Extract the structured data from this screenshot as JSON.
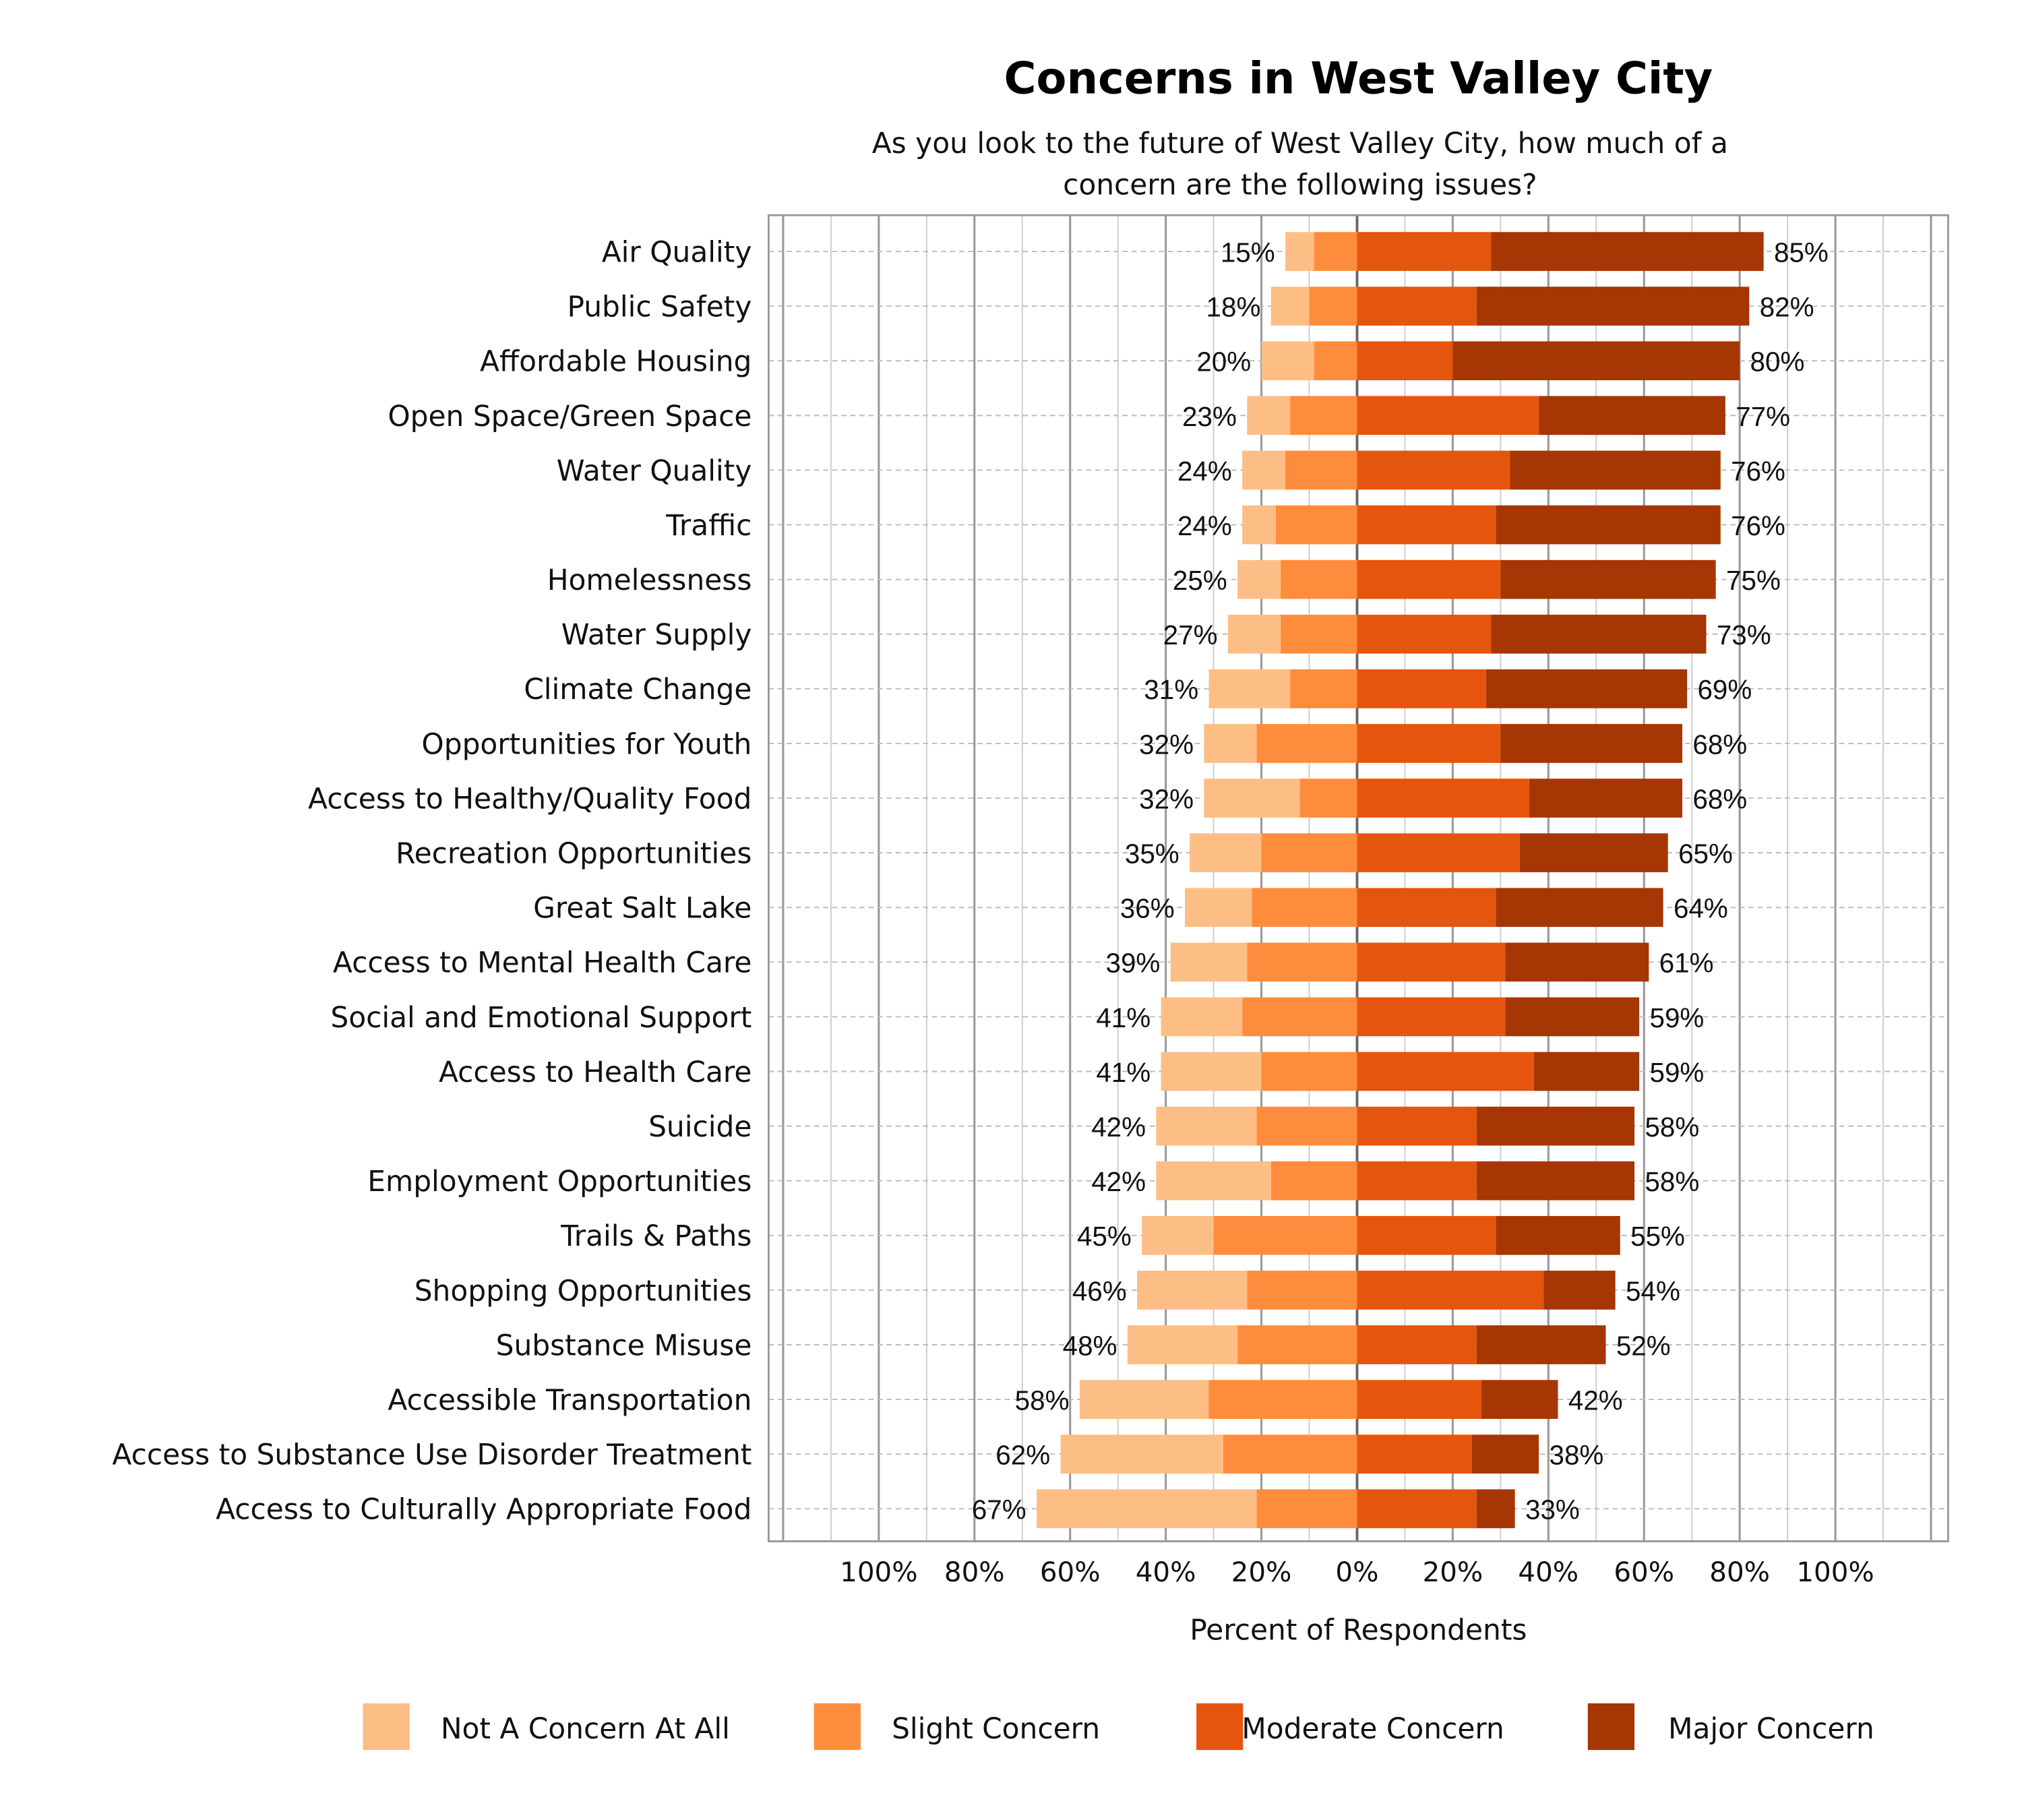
{
  "chart_data": {
    "type": "bar",
    "subtype": "diverging-stacked-horizontal",
    "title": "Concerns in West Valley City",
    "subtitle": [
      "As you look to the future of West Valley City, how much of a",
      "concern are the following issues?"
    ],
    "xlabel": "Percent of Respondents",
    "ylabel": "",
    "xlim": [
      -100,
      100
    ],
    "x_tick_labels": [
      "100%",
      "80%",
      "60%",
      "40%",
      "20%",
      "0%",
      "20%",
      "40%",
      "60%",
      "80%",
      "100%"
    ],
    "grid": true,
    "legend_position": "bottom",
    "categories": [
      "Air Quality",
      "Public Safety",
      "Affordable Housing",
      "Open Space/Green Space",
      "Water Quality",
      "Traffic",
      "Homelessness",
      "Water Supply",
      "Climate Change",
      "Opportunities for Youth",
      "Access to Healthy/Quality Food",
      "Recreation Opportunities",
      "Great Salt Lake",
      "Access to Mental Health Care",
      "Social and Emotional Support",
      "Access to Health Care",
      "Suicide",
      "Employment Opportunities",
      "Trails & Paths",
      "Shopping Opportunities",
      "Substance Misuse",
      "Accessible Transportation",
      "Access to Substance Use Disorder Treatment",
      "Access to Culturally Appropriate Food"
    ],
    "series": [
      {
        "name": "Not A Concern At All",
        "side": "negative",
        "color": "#FDBE85",
        "values": [
          6,
          8,
          11,
          9,
          9,
          7,
          9,
          11,
          17,
          11,
          20,
          15,
          14,
          16,
          17,
          21,
          21,
          24,
          15,
          23,
          23,
          27,
          34,
          46
        ]
      },
      {
        "name": "Slight Concern",
        "side": "negative",
        "color": "#FD8D3C",
        "values": [
          9,
          10,
          9,
          14,
          15,
          17,
          16,
          16,
          14,
          21,
          12,
          20,
          22,
          23,
          24,
          20,
          21,
          18,
          30,
          23,
          25,
          31,
          28,
          21
        ]
      },
      {
        "name": "Moderate Concern",
        "side": "positive",
        "color": "#E6550D",
        "values": [
          28,
          25,
          20,
          38,
          32,
          29,
          30,
          28,
          27,
          30,
          36,
          34,
          29,
          31,
          31,
          37,
          25,
          25,
          29,
          39,
          25,
          26,
          24,
          25
        ]
      },
      {
        "name": "Major Concern",
        "side": "positive",
        "color": "#A63603",
        "values": [
          57,
          57,
          60,
          39,
          44,
          47,
          45,
          45,
          42,
          38,
          32,
          31,
          35,
          30,
          28,
          22,
          33,
          33,
          26,
          15,
          27,
          16,
          14,
          8
        ]
      }
    ],
    "left_labels": [
      "15%",
      "18%",
      "20%",
      "23%",
      "24%",
      "24%",
      "25%",
      "27%",
      "31%",
      "32%",
      "32%",
      "35%",
      "36%",
      "39%",
      "41%",
      "41%",
      "42%",
      "42%",
      "45%",
      "46%",
      "48%",
      "58%",
      "62%",
      "67%"
    ],
    "right_labels": [
      "85%",
      "82%",
      "80%",
      "77%",
      "76%",
      "76%",
      "75%",
      "73%",
      "69%",
      "68%",
      "68%",
      "65%",
      "64%",
      "61%",
      "59%",
      "59%",
      "58%",
      "58%",
      "55%",
      "54%",
      "52%",
      "42%",
      "38%",
      "33%"
    ]
  }
}
